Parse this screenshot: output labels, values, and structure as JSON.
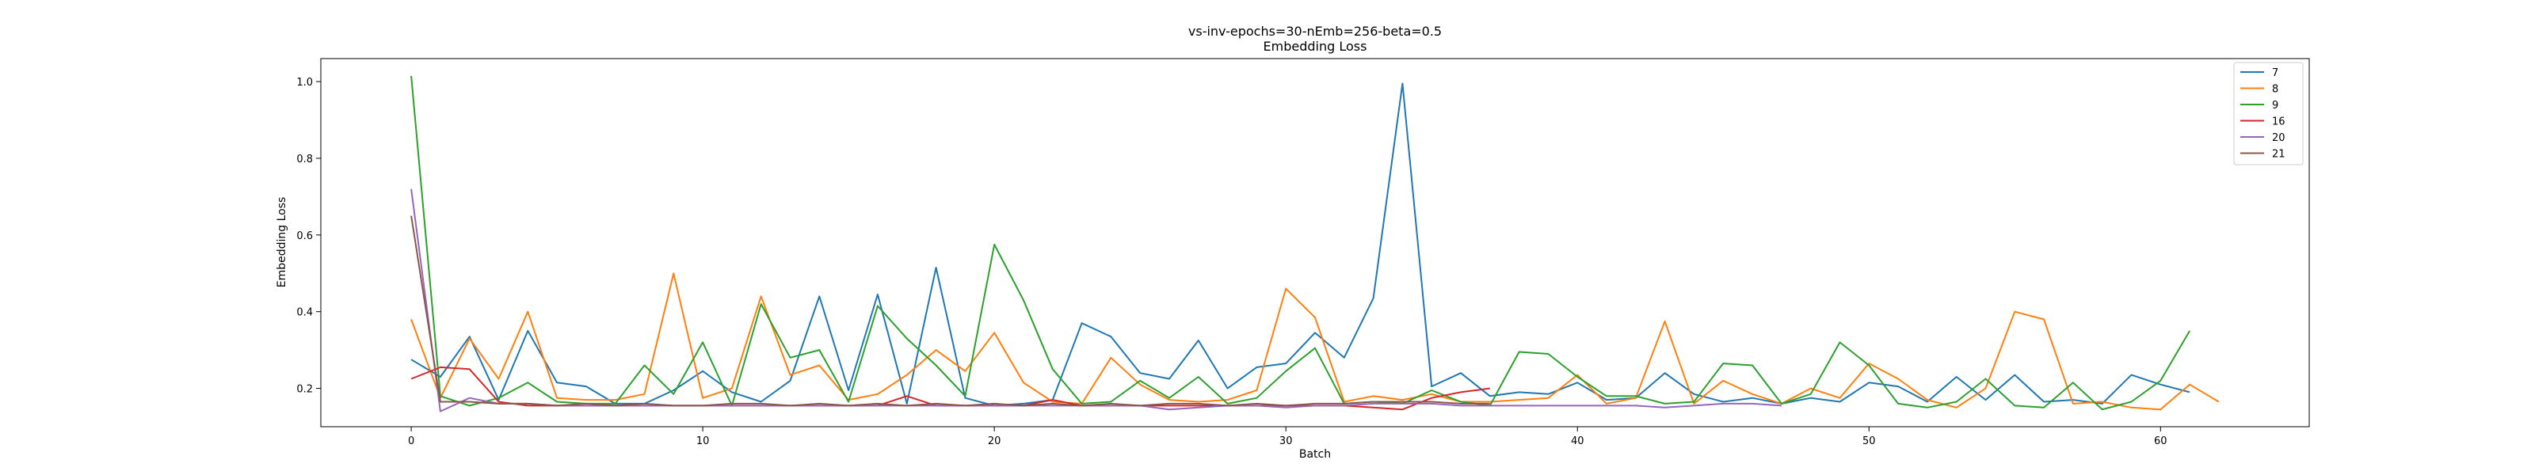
{
  "chart_data": {
    "type": "line",
    "title": "vs-inv-epochs=30-nEmb=256-beta=0.5",
    "subtitle": "Embedding Loss",
    "xlabel": "Batch",
    "ylabel": "Embedding Loss",
    "xlim": [
      -3.1,
      65.1
    ],
    "ylim": [
      0.1,
      1.06
    ],
    "xticks": [
      0,
      10,
      20,
      30,
      40,
      50,
      60
    ],
    "yticks": [
      0.2,
      0.4,
      0.6,
      0.8,
      1.0
    ],
    "xtick_labels": [
      "0",
      "10",
      "20",
      "30",
      "40",
      "50",
      "60"
    ],
    "ytick_labels": [
      "0.2",
      "0.4",
      "0.6",
      "0.8",
      "1.0"
    ],
    "grid": false,
    "legend_position": "top-right",
    "series": [
      {
        "name": "7",
        "color": "#1f77b4",
        "x": [
          0,
          1,
          2,
          3,
          4,
          5,
          6,
          7,
          8,
          9,
          10,
          11,
          12,
          13,
          14,
          15,
          16,
          17,
          18,
          19,
          20,
          21,
          22,
          23,
          24,
          25,
          26,
          27,
          28,
          29,
          30,
          31,
          32,
          33,
          34,
          35,
          36,
          37,
          38,
          39,
          40,
          41,
          42,
          43,
          44,
          45,
          46,
          47,
          48,
          49,
          50,
          51,
          52,
          53,
          54,
          55,
          56,
          57,
          58,
          59,
          60,
          61
        ],
        "values": [
          0.275,
          0.23,
          0.335,
          0.17,
          0.35,
          0.215,
          0.205,
          0.16,
          0.16,
          0.195,
          0.245,
          0.19,
          0.165,
          0.22,
          0.44,
          0.195,
          0.445,
          0.16,
          0.515,
          0.175,
          0.155,
          0.16,
          0.17,
          0.37,
          0.335,
          0.24,
          0.225,
          0.325,
          0.2,
          0.255,
          0.265,
          0.345,
          0.28,
          0.435,
          0.995,
          0.205,
          0.24,
          0.18,
          0.19,
          0.185,
          0.215,
          0.17,
          0.175,
          0.24,
          0.185,
          0.165,
          0.175,
          0.16,
          0.175,
          0.165,
          0.215,
          0.205,
          0.165,
          0.23,
          0.17,
          0.235,
          0.165,
          0.17,
          0.16,
          0.235,
          0.21,
          0.19
        ]
      },
      {
        "name": "8",
        "color": "#ff7f0e",
        "x": [
          0,
          1,
          2,
          3,
          4,
          5,
          6,
          7,
          8,
          9,
          10,
          11,
          12,
          13,
          14,
          15,
          16,
          17,
          18,
          19,
          20,
          21,
          22,
          23,
          24,
          25,
          26,
          27,
          28,
          29,
          30,
          31,
          32,
          33,
          34,
          35,
          36,
          37,
          38,
          39,
          40,
          41,
          42,
          43,
          44,
          45,
          46,
          47,
          48,
          49,
          50,
          51,
          52,
          53,
          54,
          55,
          56,
          57,
          58,
          59,
          60,
          61,
          62
        ],
        "values": [
          0.38,
          0.175,
          0.33,
          0.225,
          0.4,
          0.175,
          0.17,
          0.17,
          0.185,
          0.5,
          0.175,
          0.2,
          0.44,
          0.235,
          0.26,
          0.17,
          0.185,
          0.235,
          0.3,
          0.245,
          0.345,
          0.215,
          0.165,
          0.16,
          0.28,
          0.21,
          0.17,
          0.165,
          0.17,
          0.195,
          0.46,
          0.385,
          0.165,
          0.18,
          0.17,
          0.185,
          0.165,
          0.165,
          0.17,
          0.175,
          0.235,
          0.16,
          0.175,
          0.375,
          0.16,
          0.22,
          0.185,
          0.16,
          0.2,
          0.175,
          0.265,
          0.225,
          0.17,
          0.15,
          0.2,
          0.4,
          0.38,
          0.16,
          0.165,
          0.15,
          0.145,
          0.21,
          0.165
        ]
      },
      {
        "name": "9",
        "color": "#2ca02c",
        "x": [
          0,
          1,
          2,
          3,
          4,
          5,
          6,
          7,
          8,
          9,
          10,
          11,
          12,
          13,
          14,
          15,
          16,
          17,
          18,
          19,
          20,
          21,
          22,
          23,
          24,
          25,
          26,
          27,
          28,
          29,
          30,
          31,
          32,
          33,
          34,
          35,
          36,
          37,
          38,
          39,
          40,
          41,
          42,
          43,
          44,
          45,
          46,
          47,
          48,
          49,
          50,
          51,
          52,
          53,
          54,
          55,
          56,
          57,
          58,
          59,
          60,
          61
        ],
        "values": [
          1.015,
          0.18,
          0.155,
          0.175,
          0.215,
          0.165,
          0.16,
          0.16,
          0.26,
          0.185,
          0.32,
          0.155,
          0.42,
          0.28,
          0.3,
          0.165,
          0.415,
          0.33,
          0.26,
          0.18,
          0.575,
          0.43,
          0.25,
          0.16,
          0.165,
          0.22,
          0.175,
          0.23,
          0.16,
          0.175,
          0.245,
          0.305,
          0.16,
          0.165,
          0.16,
          0.195,
          0.165,
          0.155,
          0.295,
          0.29,
          0.23,
          0.18,
          0.18,
          0.16,
          0.165,
          0.265,
          0.26,
          0.16,
          0.185,
          0.32,
          0.26,
          0.16,
          0.15,
          0.165,
          0.225,
          0.155,
          0.15,
          0.215,
          0.145,
          0.165,
          0.22,
          0.35
        ]
      },
      {
        "name": "16",
        "color": "#d62728",
        "x": [
          0,
          1,
          2,
          3,
          4,
          5,
          6,
          7,
          8,
          9,
          10,
          11,
          12,
          13,
          14,
          15,
          16,
          17,
          18,
          19,
          20,
          21,
          22,
          23,
          24,
          25,
          26,
          27,
          28,
          29,
          30,
          31,
          32,
          33,
          34,
          35,
          36,
          37
        ],
        "values": [
          0.225,
          0.255,
          0.25,
          0.165,
          0.155,
          0.155,
          0.155,
          0.155,
          0.155,
          0.155,
          0.155,
          0.155,
          0.155,
          0.155,
          0.155,
          0.155,
          0.155,
          0.18,
          0.155,
          0.155,
          0.155,
          0.155,
          0.17,
          0.155,
          0.155,
          0.155,
          0.155,
          0.155,
          0.155,
          0.155,
          0.155,
          0.155,
          0.155,
          0.15,
          0.145,
          0.175,
          0.19,
          0.2
        ]
      },
      {
        "name": "20",
        "color": "#9467bd",
        "x": [
          0,
          1,
          2,
          3,
          4,
          5,
          6,
          7,
          8,
          9,
          10,
          11,
          12,
          13,
          14,
          15,
          16,
          17,
          18,
          19,
          20,
          21,
          22,
          23,
          24,
          25,
          26,
          27,
          28,
          29,
          30,
          31,
          32,
          33,
          34,
          35,
          36,
          37,
          38,
          39,
          40,
          41,
          42,
          43,
          44,
          45,
          46,
          47
        ],
        "values": [
          0.72,
          0.14,
          0.175,
          0.16,
          0.16,
          0.155,
          0.155,
          0.155,
          0.155,
          0.155,
          0.155,
          0.155,
          0.155,
          0.155,
          0.155,
          0.155,
          0.155,
          0.155,
          0.155,
          0.155,
          0.155,
          0.155,
          0.155,
          0.155,
          0.155,
          0.155,
          0.145,
          0.15,
          0.155,
          0.155,
          0.15,
          0.155,
          0.155,
          0.16,
          0.16,
          0.16,
          0.155,
          0.155,
          0.155,
          0.155,
          0.155,
          0.155,
          0.155,
          0.15,
          0.155,
          0.16,
          0.16,
          0.155
        ]
      },
      {
        "name": "21",
        "color": "#8c564b",
        "x": [
          0,
          1,
          2,
          3,
          4,
          5,
          6,
          7,
          8,
          9,
          10,
          11,
          12,
          13,
          14,
          15,
          16,
          17,
          18,
          19,
          20,
          21,
          22,
          23,
          24,
          25,
          26,
          27,
          28,
          29,
          30,
          31,
          32,
          33,
          34,
          35,
          36,
          37
        ],
        "values": [
          0.65,
          0.165,
          0.165,
          0.16,
          0.16,
          0.155,
          0.16,
          0.155,
          0.16,
          0.155,
          0.155,
          0.16,
          0.16,
          0.155,
          0.16,
          0.155,
          0.16,
          0.155,
          0.16,
          0.155,
          0.16,
          0.155,
          0.16,
          0.155,
          0.16,
          0.155,
          0.16,
          0.16,
          0.155,
          0.16,
          0.155,
          0.16,
          0.16,
          0.165,
          0.165,
          0.165,
          0.16,
          0.16
        ]
      }
    ]
  }
}
